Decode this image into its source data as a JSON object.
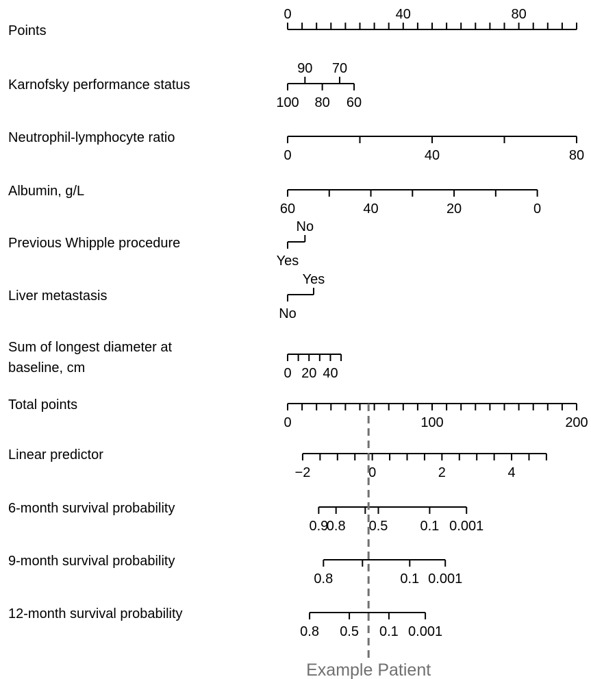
{
  "chart_data": {
    "type": "nomogram",
    "title": "",
    "colors": {
      "axes": "#000000",
      "reference_line": "#707070"
    },
    "points_range": [
      0,
      100
    ],
    "total_points_range": [
      0,
      200
    ],
    "rows": [
      {
        "id": "points",
        "label": "Points",
        "label_lines": [
          "Points"
        ],
        "labels_side": "above",
        "ticks": [
          {
            "p": 0,
            "label": "0"
          },
          {
            "p": 5
          },
          {
            "p": 10
          },
          {
            "p": 15
          },
          {
            "p": 20
          },
          {
            "p": 25
          },
          {
            "p": 30
          },
          {
            "p": 35
          },
          {
            "p": 40,
            "label": "40"
          },
          {
            "p": 45
          },
          {
            "p": 50
          },
          {
            "p": 55
          },
          {
            "p": 60
          },
          {
            "p": 65
          },
          {
            "p": 70
          },
          {
            "p": 75
          },
          {
            "p": 80,
            "label": "80"
          },
          {
            "p": 85
          },
          {
            "p": 90
          },
          {
            "p": 95
          },
          {
            "p": 100
          }
        ]
      },
      {
        "id": "karnofsky",
        "label": "Karnofsky performance status",
        "label_lines": [
          "Karnofsky performance status"
        ],
        "labels_side": "both",
        "ticks": [
          {
            "p": 0,
            "label": "100",
            "side": "below"
          },
          {
            "p": 6,
            "label": "90",
            "side": "above"
          },
          {
            "p": 12,
            "label": "80",
            "side": "below"
          },
          {
            "p": 18,
            "label": "70",
            "side": "above"
          },
          {
            "p": 23,
            "label": "60",
            "side": "below"
          }
        ]
      },
      {
        "id": "nlr",
        "label": "Neutrophil-lymphocyte ratio",
        "label_lines": [
          "Neutrophil-lymphocyte ratio"
        ],
        "labels_side": "below",
        "ticks": [
          {
            "p": 0,
            "label": "0"
          },
          {
            "p": 25
          },
          {
            "p": 50,
            "label": "40"
          },
          {
            "p": 75
          },
          {
            "p": 100,
            "label": "80"
          }
        ]
      },
      {
        "id": "albumin",
        "label": "Albumin, g/L",
        "label_lines": [
          "Albumin, g/L"
        ],
        "labels_side": "below",
        "ticks": [
          {
            "p": 0,
            "label": "60"
          },
          {
            "p": 14.4
          },
          {
            "p": 28.8,
            "label": "40"
          },
          {
            "p": 43.2
          },
          {
            "p": 57.6,
            "label": "20"
          },
          {
            "p": 72
          },
          {
            "p": 86.4,
            "label": "0"
          }
        ]
      },
      {
        "id": "whipple",
        "label": "Previous Whipple procedure",
        "label_lines": [
          "Previous Whipple procedure"
        ],
        "labels_side": "both",
        "ticks": [
          {
            "p": 0,
            "label": "Yes",
            "side": "below"
          },
          {
            "p": 6,
            "label": "No",
            "side": "above"
          }
        ]
      },
      {
        "id": "liver",
        "label": "Liver metastasis",
        "label_lines": [
          "Liver metastasis"
        ],
        "labels_side": "both",
        "ticks": [
          {
            "p": 0,
            "label": "No",
            "side": "below"
          },
          {
            "p": 9,
            "label": "Yes",
            "side": "above"
          }
        ]
      },
      {
        "id": "sld",
        "label": "Sum of longest diameter at baseline, cm",
        "label_lines": [
          "Sum of longest diameter at",
          "baseline, cm"
        ],
        "labels_side": "below",
        "ticks": [
          {
            "p": 0,
            "label": "0"
          },
          {
            "p": 3.7
          },
          {
            "p": 7.4,
            "label": "20"
          },
          {
            "p": 11.1
          },
          {
            "p": 14.8,
            "label": "40"
          },
          {
            "p": 18.5
          }
        ]
      },
      {
        "id": "total_points",
        "label": "Total points",
        "label_lines": [
          "Total points"
        ],
        "labels_side": "below",
        "scale": "total",
        "ticks": [
          {
            "p": 0,
            "label": "0"
          },
          {
            "p": 10
          },
          {
            "p": 20
          },
          {
            "p": 30
          },
          {
            "p": 40
          },
          {
            "p": 50
          },
          {
            "p": 60
          },
          {
            "p": 70
          },
          {
            "p": 80
          },
          {
            "p": 90
          },
          {
            "p": 100,
            "label": "100"
          },
          {
            "p": 110
          },
          {
            "p": 120
          },
          {
            "p": 130
          },
          {
            "p": 140
          },
          {
            "p": 150
          },
          {
            "p": 160
          },
          {
            "p": 170
          },
          {
            "p": 180
          },
          {
            "p": 190
          },
          {
            "p": 200,
            "label": "200"
          }
        ]
      },
      {
        "id": "linear_predictor",
        "label": "Linear predictor",
        "label_lines": [
          "Linear predictor"
        ],
        "labels_side": "below",
        "scale": "total",
        "ticks": [
          {
            "p": 10.4,
            "label": "−2"
          },
          {
            "p": 22.45
          },
          {
            "p": 34.5
          },
          {
            "p": 46.55
          },
          {
            "p": 58.6,
            "label": "0"
          },
          {
            "p": 70.65
          },
          {
            "p": 82.7
          },
          {
            "p": 94.75
          },
          {
            "p": 106.8,
            "label": "2"
          },
          {
            "p": 118.85
          },
          {
            "p": 130.9
          },
          {
            "p": 142.95
          },
          {
            "p": 155,
            "label": "4"
          },
          {
            "p": 167.05
          },
          {
            "p": 179.1
          }
        ]
      },
      {
        "id": "surv6",
        "label": "6-month survival probability",
        "label_lines": [
          "6-month survival probability"
        ],
        "labels_side": "below",
        "scale": "total",
        "ticks": [
          {
            "p": 21.5,
            "label": "0.9"
          },
          {
            "p": 33.5,
            "label": "0.8"
          },
          {
            "p": 53.7
          },
          {
            "p": 62.8,
            "label": "0.5"
          },
          {
            "p": 98.3,
            "label": "0.1"
          },
          {
            "p": 123.8,
            "label": "0.001"
          }
        ]
      },
      {
        "id": "surv9",
        "label": "9-month survival probability",
        "label_lines": [
          "9-month survival probability"
        ],
        "labels_side": "below",
        "scale": "total",
        "ticks": [
          {
            "p": 24.8,
            "label": "0.8"
          },
          {
            "p": 51.8
          },
          {
            "p": 84.5,
            "label": "0.1"
          },
          {
            "p": 109.1,
            "label": "0.001"
          }
        ]
      },
      {
        "id": "surv12",
        "label": "12-month survival probability",
        "label_lines": [
          "12-month survival probability"
        ],
        "labels_side": "below",
        "scale": "total",
        "ticks": [
          {
            "p": 15.2,
            "label": "0.8"
          },
          {
            "p": 42.7,
            "label": "0.5"
          },
          {
            "p": 70.1,
            "label": "0.1"
          },
          {
            "p": 95.3,
            "label": "0.001"
          }
        ]
      }
    ],
    "reference_line": {
      "label": "Example Patient",
      "total_points": 56
    }
  }
}
